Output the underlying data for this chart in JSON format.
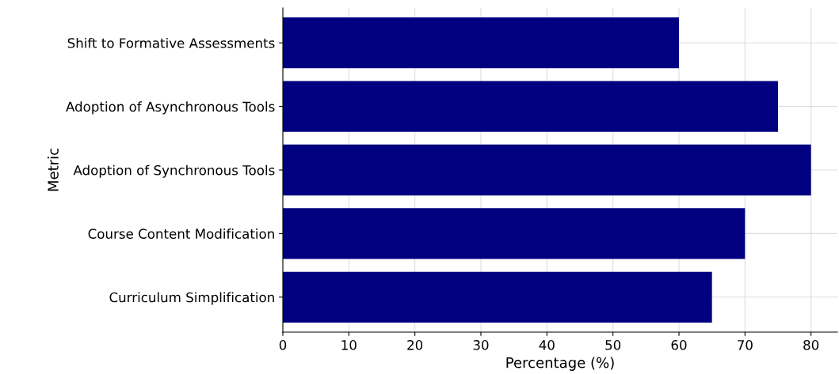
{
  "chart_data": {
    "type": "bar",
    "orientation": "horizontal",
    "xlabel": "Percentage (%)",
    "ylabel": "Metric",
    "categories": [
      "Shift to Formative Assessments",
      "Adoption of Asynchronous Tools",
      "Adoption of Synchronous Tools",
      "Course Content Modification",
      "Curriculum Simplification"
    ],
    "values": [
      60,
      75,
      80,
      70,
      65
    ],
    "color": "#000080",
    "xlim": [
      0,
      84
    ],
    "xticks": [
      0,
      10,
      20,
      30,
      40,
      50,
      60,
      70,
      80
    ],
    "grid": true,
    "legend": false
  }
}
